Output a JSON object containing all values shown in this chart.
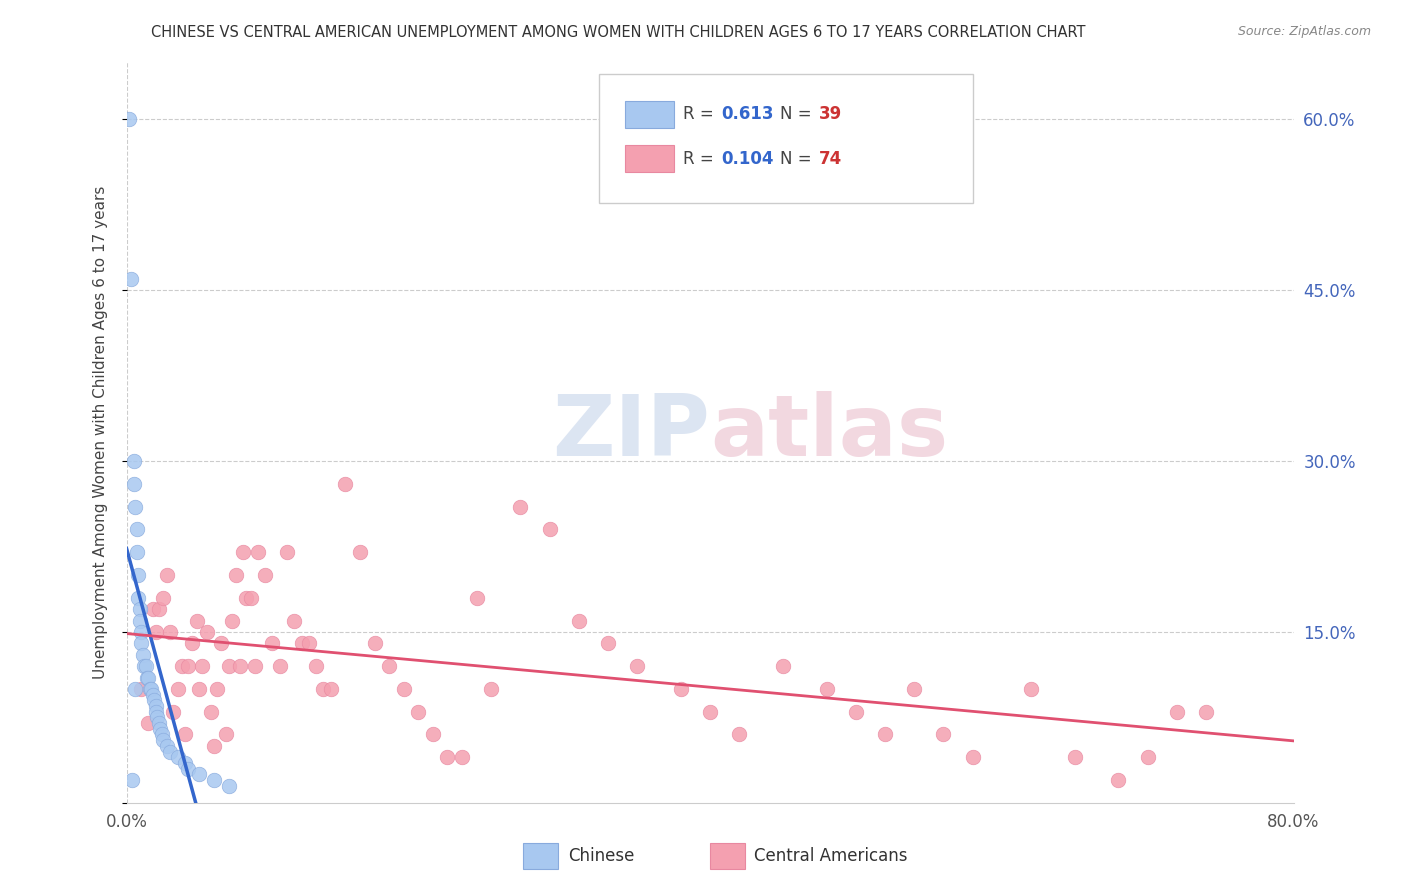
{
  "title": "CHINESE VS CENTRAL AMERICAN UNEMPLOYMENT AMONG WOMEN WITH CHILDREN AGES 6 TO 17 YEARS CORRELATION CHART",
  "source": "Source: ZipAtlas.com",
  "ylabel": "Unemployment Among Women with Children Ages 6 to 17 years",
  "xlim": [
    0.0,
    0.8
  ],
  "ylim": [
    0.0,
    0.65
  ],
  "chinese_R": 0.613,
  "chinese_N": 39,
  "central_R": 0.104,
  "central_N": 74,
  "chinese_color": "#a8c8f0",
  "chinese_line_color": "#3366cc",
  "central_color": "#f4a0b0",
  "central_line_color": "#e05070",
  "right_yticks": [
    0.15,
    0.3,
    0.45,
    0.6
  ],
  "right_ytick_labels": [
    "15.0%",
    "30.0%",
    "45.0%",
    "60.0%"
  ],
  "chinese_x": [
    0.002,
    0.003,
    0.004,
    0.005,
    0.005,
    0.006,
    0.006,
    0.007,
    0.007,
    0.008,
    0.008,
    0.009,
    0.009,
    0.01,
    0.01,
    0.011,
    0.012,
    0.013,
    0.014,
    0.015,
    0.016,
    0.017,
    0.018,
    0.019,
    0.02,
    0.02,
    0.021,
    0.022,
    0.023,
    0.024,
    0.025,
    0.028,
    0.03,
    0.035,
    0.04,
    0.042,
    0.05,
    0.06,
    0.07
  ],
  "chinese_y": [
    0.6,
    0.46,
    0.02,
    0.3,
    0.28,
    0.26,
    0.1,
    0.24,
    0.22,
    0.2,
    0.18,
    0.17,
    0.16,
    0.15,
    0.14,
    0.13,
    0.12,
    0.12,
    0.11,
    0.11,
    0.1,
    0.1,
    0.095,
    0.09,
    0.085,
    0.08,
    0.075,
    0.07,
    0.065,
    0.06,
    0.055,
    0.05,
    0.045,
    0.04,
    0.035,
    0.03,
    0.025,
    0.02,
    0.015
  ],
  "central_x": [
    0.01,
    0.015,
    0.018,
    0.02,
    0.022,
    0.025,
    0.028,
    0.03,
    0.032,
    0.035,
    0.038,
    0.04,
    0.042,
    0.045,
    0.048,
    0.05,
    0.052,
    0.055,
    0.058,
    0.06,
    0.062,
    0.065,
    0.068,
    0.07,
    0.072,
    0.075,
    0.078,
    0.08,
    0.082,
    0.085,
    0.088,
    0.09,
    0.095,
    0.1,
    0.105,
    0.11,
    0.115,
    0.12,
    0.125,
    0.13,
    0.135,
    0.14,
    0.15,
    0.16,
    0.17,
    0.18,
    0.19,
    0.2,
    0.21,
    0.22,
    0.23,
    0.24,
    0.25,
    0.27,
    0.29,
    0.31,
    0.33,
    0.35,
    0.38,
    0.4,
    0.42,
    0.45,
    0.48,
    0.5,
    0.52,
    0.54,
    0.56,
    0.58,
    0.62,
    0.65,
    0.68,
    0.7,
    0.72,
    0.74
  ],
  "central_y": [
    0.1,
    0.07,
    0.17,
    0.15,
    0.17,
    0.18,
    0.2,
    0.15,
    0.08,
    0.1,
    0.12,
    0.06,
    0.12,
    0.14,
    0.16,
    0.1,
    0.12,
    0.15,
    0.08,
    0.05,
    0.1,
    0.14,
    0.06,
    0.12,
    0.16,
    0.2,
    0.12,
    0.22,
    0.18,
    0.18,
    0.12,
    0.22,
    0.2,
    0.14,
    0.12,
    0.22,
    0.16,
    0.14,
    0.14,
    0.12,
    0.1,
    0.1,
    0.28,
    0.22,
    0.14,
    0.12,
    0.1,
    0.08,
    0.06,
    0.04,
    0.04,
    0.18,
    0.1,
    0.26,
    0.24,
    0.16,
    0.14,
    0.12,
    0.1,
    0.08,
    0.06,
    0.12,
    0.1,
    0.08,
    0.06,
    0.1,
    0.06,
    0.04,
    0.1,
    0.04,
    0.02,
    0.04,
    0.08,
    0.08
  ]
}
